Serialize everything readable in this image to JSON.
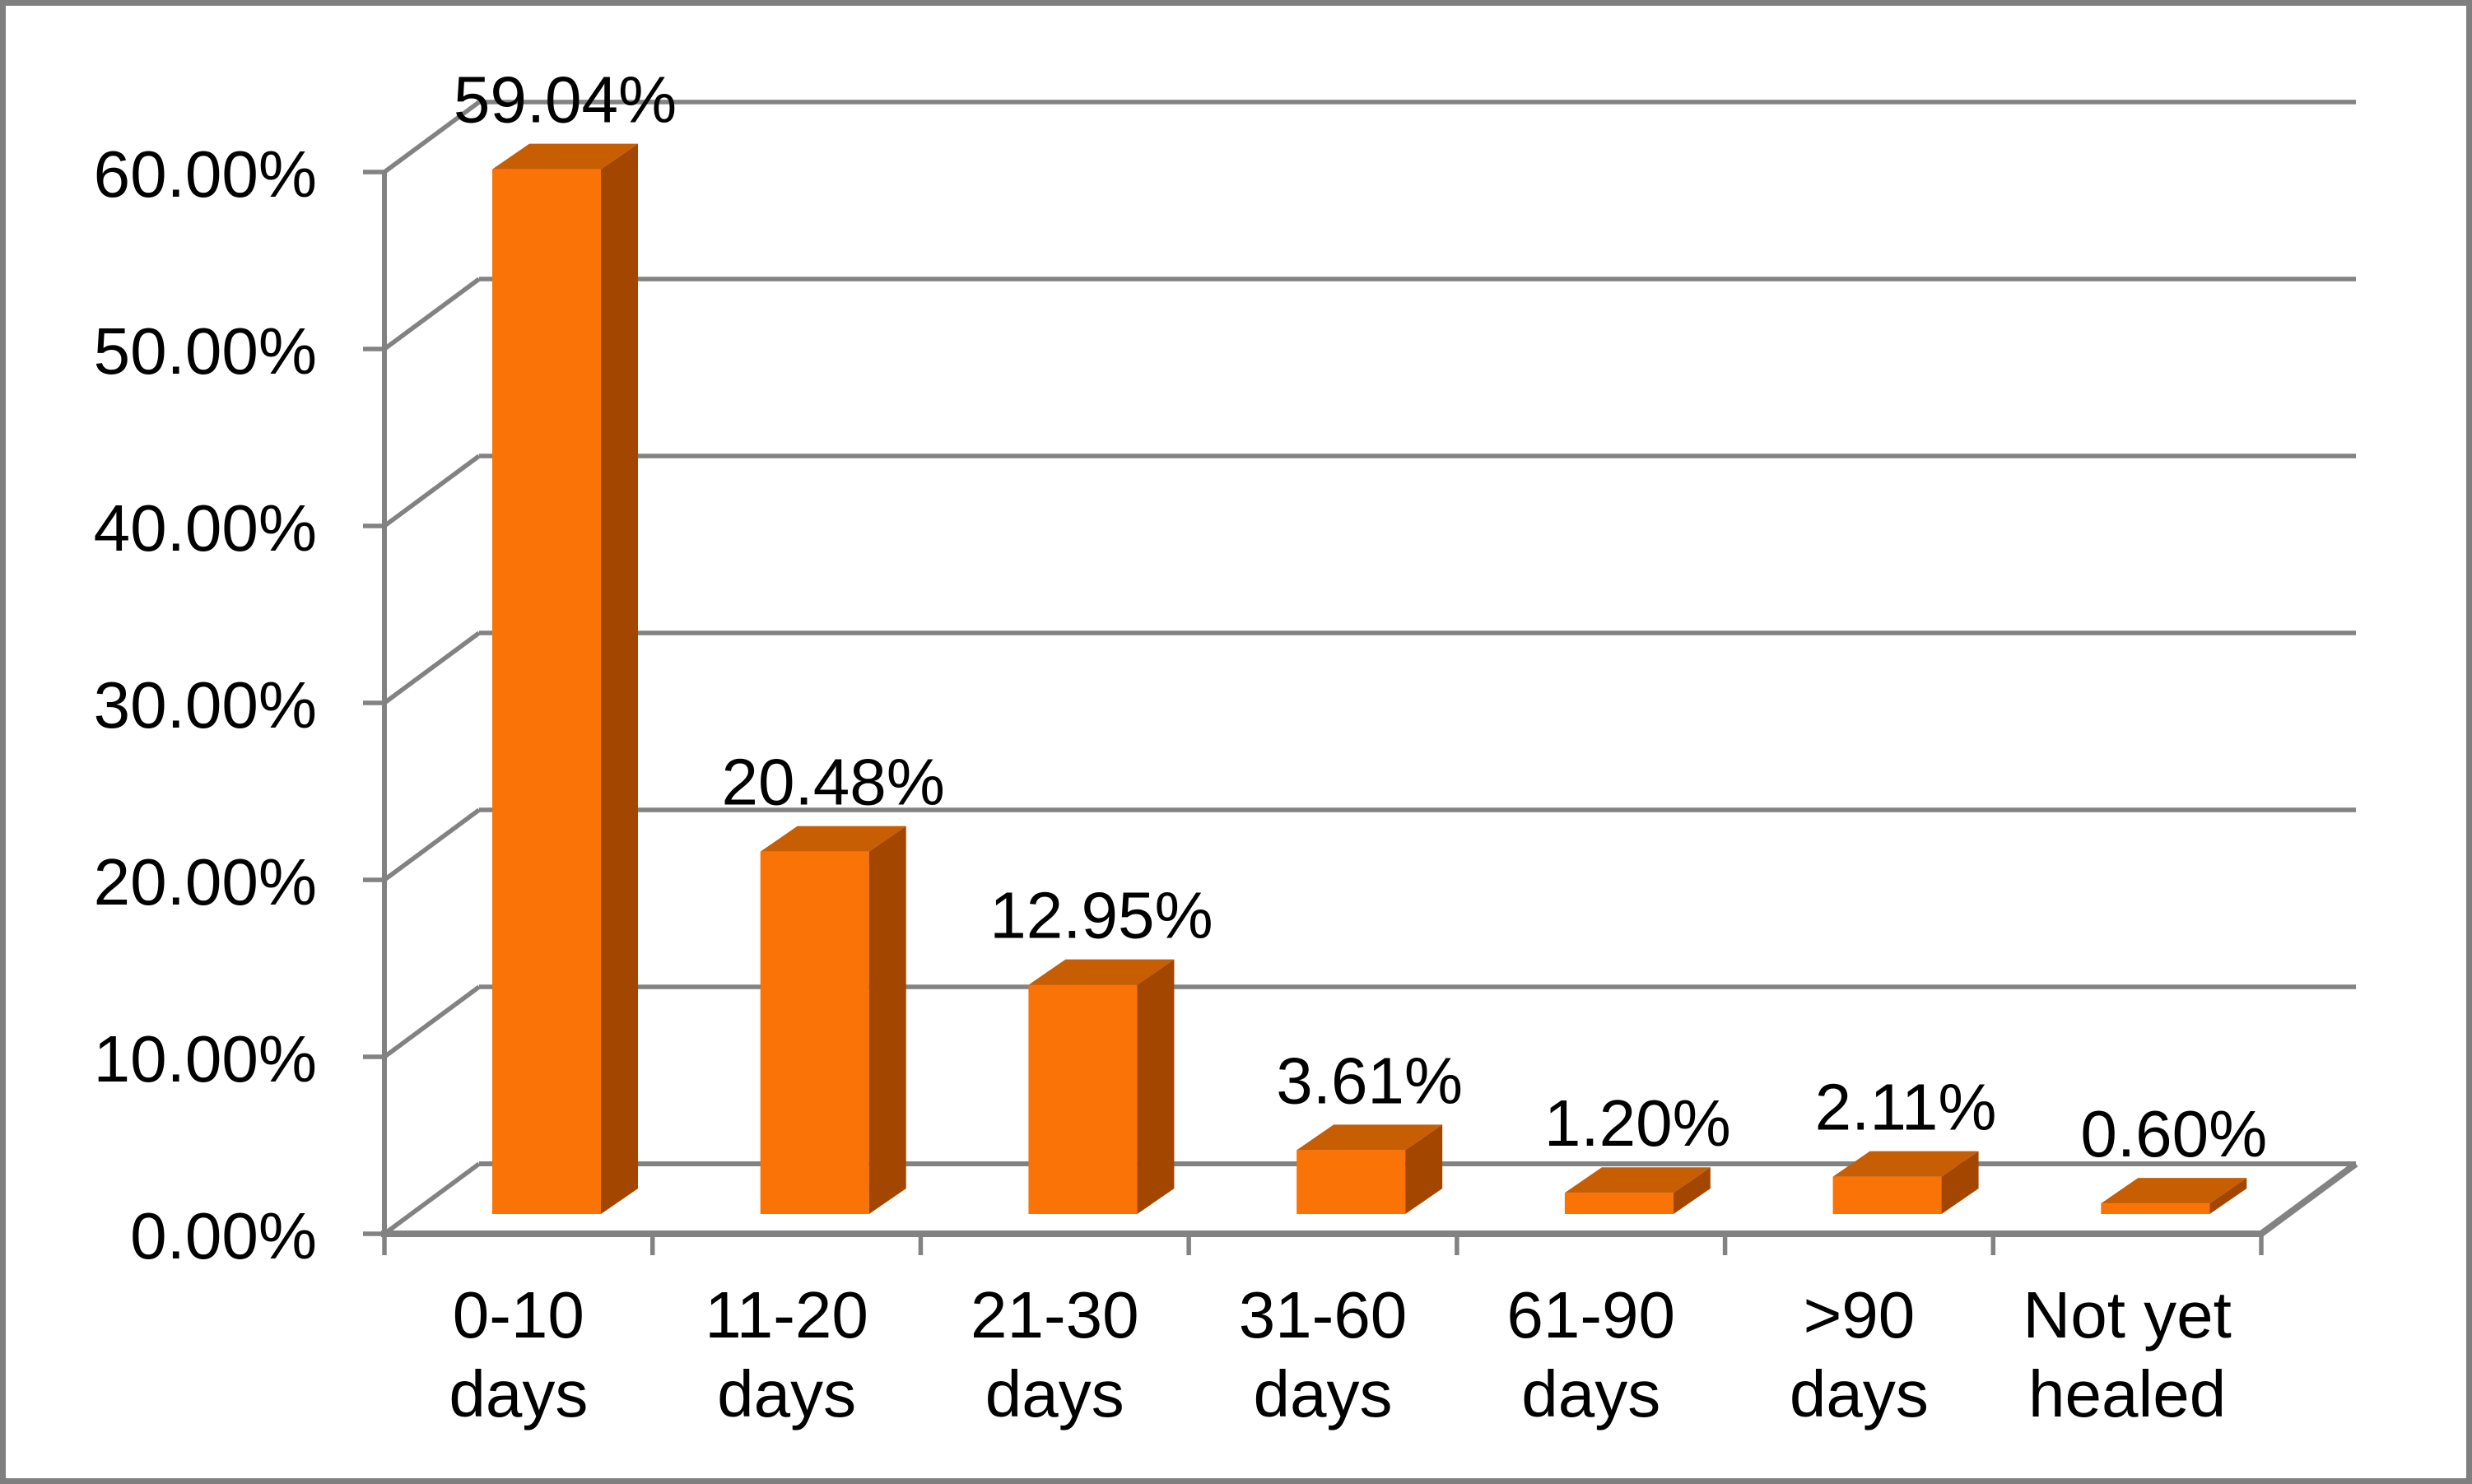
{
  "chart_data": {
    "type": "bar",
    "projection": "3d-column",
    "title": "",
    "xlabel": "",
    "ylabel": "",
    "grid": true,
    "legend": false,
    "categories": [
      "0-10 days",
      "11-20 days",
      "21-30 days",
      "31-60 days",
      "61-90 days",
      ">90 days",
      "Not yet healed"
    ],
    "category_lines": [
      [
        "0-10",
        "days"
      ],
      [
        "11-20",
        "days"
      ],
      [
        "21-30",
        "days"
      ],
      [
        "31-60",
        "days"
      ],
      [
        "61-90",
        "days"
      ],
      [
        ">90",
        "days"
      ],
      [
        "Not yet",
        "healed"
      ]
    ],
    "values": [
      59.04,
      20.48,
      12.95,
      3.61,
      1.2,
      2.11,
      0.6
    ],
    "value_labels": [
      "59.04%",
      "20.48%",
      "12.95%",
      "3.61%",
      "1.20%",
      "2.11%",
      "0.60%"
    ],
    "y_axis": {
      "min": 0,
      "max": 60,
      "step": 10,
      "tick_labels": [
        "0.00%",
        "10.00%",
        "20.00%",
        "30.00%",
        "40.00%",
        "50.00%",
        "60.00%"
      ]
    },
    "ylim": [
      0,
      60
    ],
    "colors": {
      "bar_front": "#FA7306",
      "bar_top": "#C85E04",
      "bar_side": "#A34700",
      "gridline": "#828282",
      "axis": "#8A8A8A",
      "text": "#000000",
      "background": "#FFFFFF",
      "page_border": "#7F7F7F"
    }
  }
}
